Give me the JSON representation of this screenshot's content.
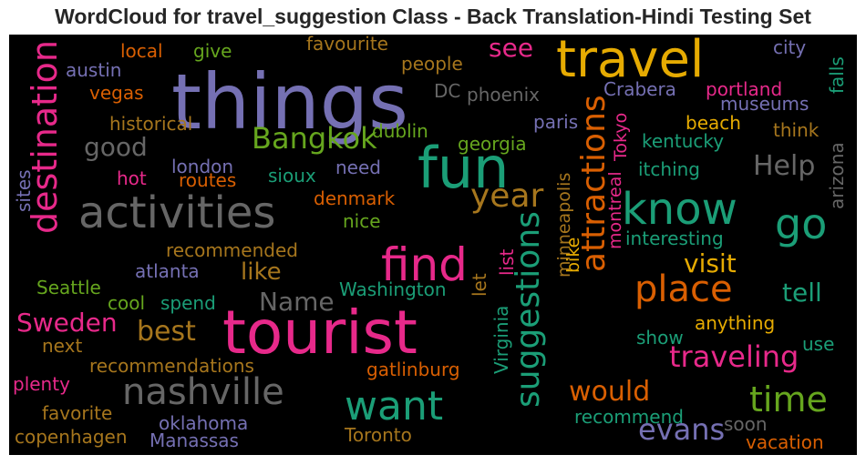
{
  "chart_data": {
    "type": "wordcloud",
    "title": "WordCloud for travel_suggestion Class - Back Translation-Hindi Testing Set",
    "background": "#000000",
    "palette": {
      "teal": "#1b9e77",
      "orange": "#d95f02",
      "purple": "#7570b3",
      "pink": "#e7298a",
      "green": "#66a61e",
      "gold": "#e6ab02",
      "brown": "#a6761d",
      "gray": "#666666"
    },
    "words": [
      {
        "text": "things",
        "color": "purple"
      },
      {
        "text": "tourist",
        "color": "pink"
      },
      {
        "text": "travel",
        "color": "gold"
      },
      {
        "text": "fun",
        "color": "teal"
      },
      {
        "text": "activities",
        "color": "gray"
      },
      {
        "text": "find",
        "color": "pink"
      },
      {
        "text": "know",
        "color": "teal"
      },
      {
        "text": "want",
        "color": "teal"
      },
      {
        "text": "nashville",
        "color": "gray"
      },
      {
        "text": "destination",
        "color": "pink"
      },
      {
        "text": "attractions",
        "color": "orange"
      },
      {
        "text": "suggestions",
        "color": "teal"
      },
      {
        "text": "go",
        "color": "teal"
      },
      {
        "text": "place",
        "color": "orange"
      },
      {
        "text": "time",
        "color": "green"
      },
      {
        "text": "year",
        "color": "brown"
      },
      {
        "text": "Bangkok",
        "color": "green"
      },
      {
        "text": "Help",
        "color": "gray"
      },
      {
        "text": "traveling",
        "color": "pink"
      },
      {
        "text": "would",
        "color": "orange"
      },
      {
        "text": "evans",
        "color": "purple"
      },
      {
        "text": "tell",
        "color": "teal"
      },
      {
        "text": "visit",
        "color": "gold"
      },
      {
        "text": "Sweden",
        "color": "pink"
      },
      {
        "text": "best",
        "color": "brown"
      },
      {
        "text": "Name",
        "color": "gray"
      },
      {
        "text": "good",
        "color": "gray"
      },
      {
        "text": "see",
        "color": "pink"
      },
      {
        "text": "like",
        "color": "brown"
      },
      {
        "text": "Crabera",
        "color": "purple"
      },
      {
        "text": "portland",
        "color": "pink"
      },
      {
        "text": "phoenix",
        "color": "gray"
      },
      {
        "text": "dublin",
        "color": "green"
      },
      {
        "text": "georgia",
        "color": "green"
      },
      {
        "text": "paris",
        "color": "purple"
      },
      {
        "text": "beach",
        "color": "gold"
      },
      {
        "text": "kentucky",
        "color": "teal"
      },
      {
        "text": "think",
        "color": "brown"
      },
      {
        "text": "museums",
        "color": "purple"
      },
      {
        "text": "city",
        "color": "purple"
      },
      {
        "text": "falls",
        "color": "teal"
      },
      {
        "text": "arizona",
        "color": "gray"
      },
      {
        "text": "itching",
        "color": "teal"
      },
      {
        "text": "interesting",
        "color": "teal"
      },
      {
        "text": "montreal",
        "color": "pink"
      },
      {
        "text": "Tokyo",
        "color": "pink"
      },
      {
        "text": "minneapolis",
        "color": "brown"
      },
      {
        "text": "bike",
        "color": "gold"
      },
      {
        "text": "list",
        "color": "pink"
      },
      {
        "text": "Virginia",
        "color": "teal"
      },
      {
        "text": "let",
        "color": "brown"
      },
      {
        "text": "Washington",
        "color": "teal"
      },
      {
        "text": "gatlinburg",
        "color": "orange"
      },
      {
        "text": "anything",
        "color": "gold"
      },
      {
        "text": "show",
        "color": "teal"
      },
      {
        "text": "use",
        "color": "teal"
      },
      {
        "text": "recommend",
        "color": "teal"
      },
      {
        "text": "soon",
        "color": "gray"
      },
      {
        "text": "vacation",
        "color": "orange"
      },
      {
        "text": "Toronto",
        "color": "brown"
      },
      {
        "text": "oklahoma",
        "color": "purple"
      },
      {
        "text": "Manassas",
        "color": "purple"
      },
      {
        "text": "copenhagen",
        "color": "brown"
      },
      {
        "text": "favorite",
        "color": "brown"
      },
      {
        "text": "plenty",
        "color": "pink"
      },
      {
        "text": "recommendations",
        "color": "brown"
      },
      {
        "text": "next",
        "color": "brown"
      },
      {
        "text": "Seattle",
        "color": "green"
      },
      {
        "text": "atlanta",
        "color": "purple"
      },
      {
        "text": "cool",
        "color": "green"
      },
      {
        "text": "spend",
        "color": "teal"
      },
      {
        "text": "recommended",
        "color": "brown"
      },
      {
        "text": "nice",
        "color": "green"
      },
      {
        "text": "denmark",
        "color": "orange"
      },
      {
        "text": "need",
        "color": "purple"
      },
      {
        "text": "sioux",
        "color": "teal"
      },
      {
        "text": "routes",
        "color": "orange"
      },
      {
        "text": "london",
        "color": "purple"
      },
      {
        "text": "hot",
        "color": "pink"
      },
      {
        "text": "sites",
        "color": "purple"
      },
      {
        "text": "historical",
        "color": "brown"
      },
      {
        "text": "vegas",
        "color": "orange"
      },
      {
        "text": "austin",
        "color": "purple"
      },
      {
        "text": "local",
        "color": "orange"
      },
      {
        "text": "give",
        "color": "green"
      },
      {
        "text": "favourite",
        "color": "brown"
      },
      {
        "text": "people",
        "color": "brown"
      },
      {
        "text": "DC",
        "color": "gray"
      }
    ]
  }
}
